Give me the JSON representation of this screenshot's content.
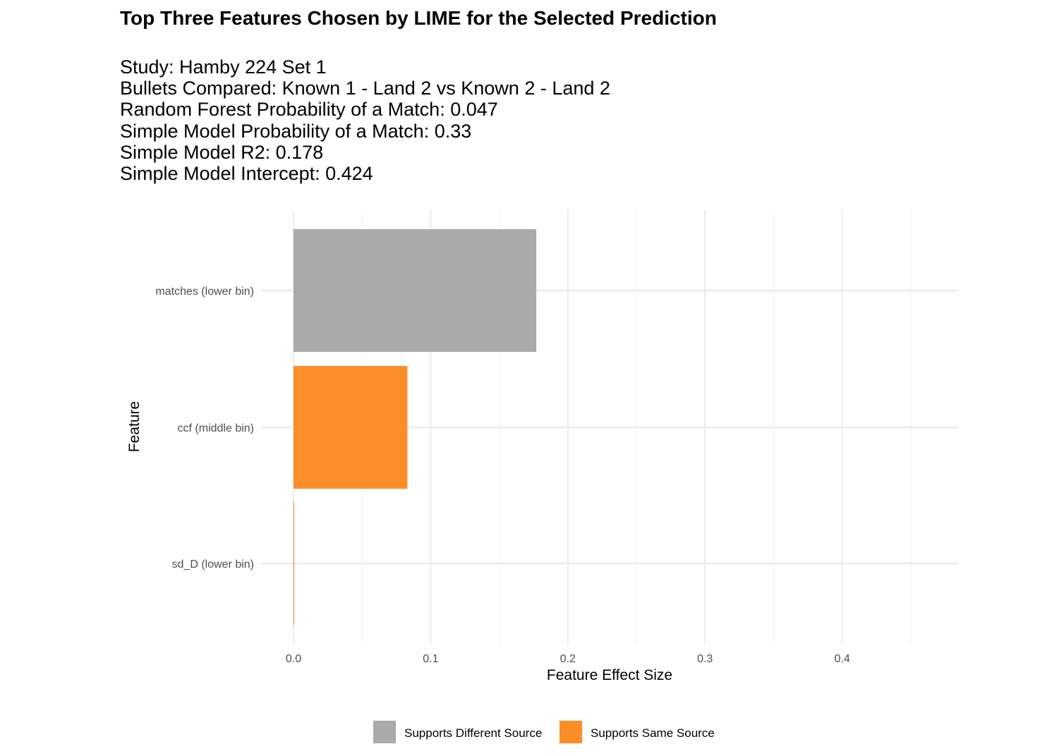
{
  "title": "Top Three Features Chosen by LIME for the Selected Prediction",
  "subtitle_lines": [
    "Study:  Hamby 224 Set 1",
    "Bullets Compared:  Known 1 - Land 2  vs  Known 2 - Land 2",
    "Random Forest Probability of a Match:  0.047",
    "Simple Model Probability of a Match:  0.33",
    "Simple Model R2:  0.178",
    "Simple Model Intercept:  0.424"
  ],
  "chart_data": {
    "type": "bar",
    "orientation": "horizontal",
    "categories": [
      "matches (lower bin)",
      "ccf (middle bin)",
      "sd_D (lower bin)"
    ],
    "values": [
      0.177,
      0.083,
      0.0005
    ],
    "groups": [
      "Supports Different Source",
      "Supports Same Source",
      "Supports Same Source"
    ],
    "xlabel": "Feature Effect Size",
    "ylabel": "Feature",
    "xlim": [
      0,
      0.485
    ],
    "x_ticks": [
      0.0,
      0.1,
      0.2,
      0.3,
      0.4
    ],
    "x_tick_labels": [
      "0.0",
      "0.1",
      "0.2",
      "0.3",
      "0.4"
    ],
    "grid": true,
    "legend": {
      "position": "bottom",
      "entries": [
        {
          "label": "Supports Different Source",
          "color": "#aaaaaa"
        },
        {
          "label": "Supports Same Source",
          "color": "#fb8e29"
        }
      ]
    }
  }
}
